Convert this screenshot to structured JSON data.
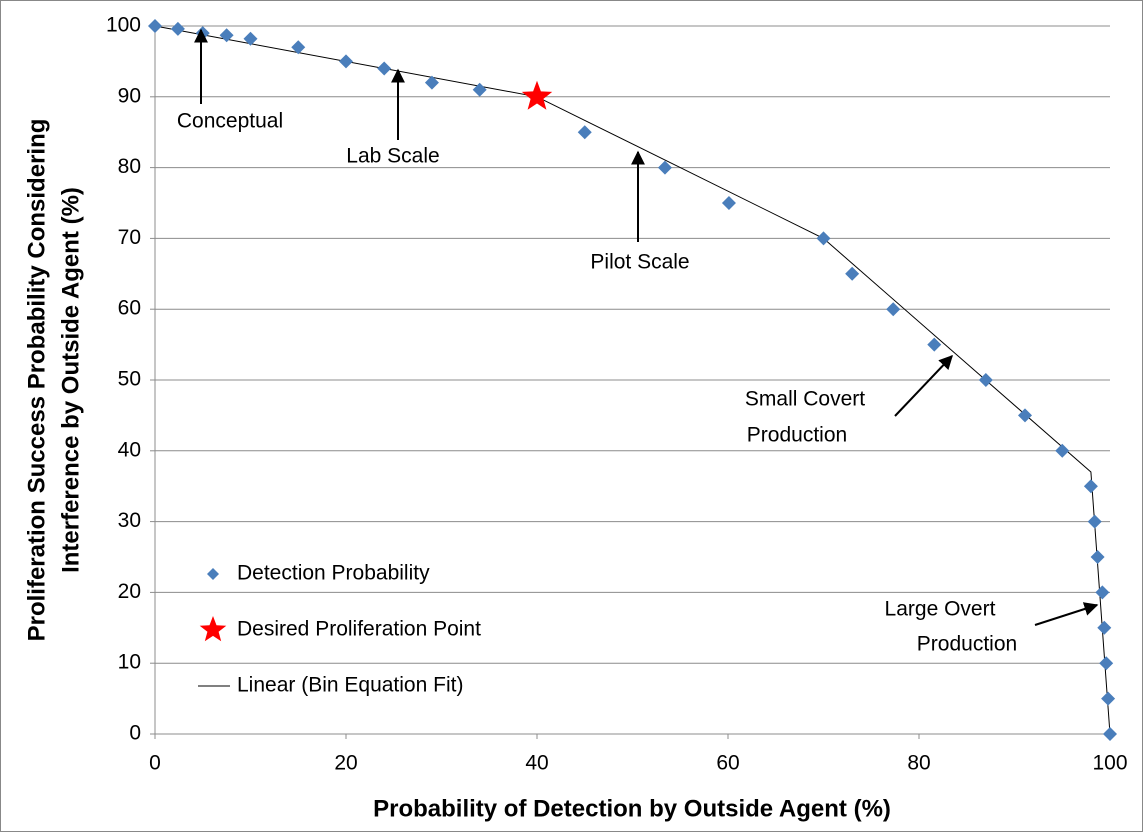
{
  "chart_data": {
    "type": "scatter",
    "xlabel": "Probability of Detection by Outside Agent (%)",
    "ylabel": [
      "Proliferation Success Probability Considering",
      "Interference by Outside Agent (%)"
    ],
    "xlim": [
      0,
      100
    ],
    "xticks": [
      0,
      20,
      40,
      60,
      80,
      100
    ],
    "ylim": [
      0,
      100
    ],
    "yticks": [
      0,
      10,
      20,
      30,
      40,
      50,
      60,
      70,
      80,
      90,
      100
    ],
    "grid": true,
    "legend": "lower left",
    "series": [
      {
        "name": "Detection Probability",
        "color": "#4a7ebb",
        "marker": "diamond",
        "x": [
          0,
          2.4,
          5,
          7.5,
          10,
          15,
          20,
          24,
          29,
          34,
          45,
          53.4,
          60.1,
          70,
          73,
          77.3,
          81.6,
          87,
          91.1,
          95,
          98,
          98.4,
          98.7,
          99.2,
          99.4,
          99.6,
          99.8,
          100
        ],
        "values": [
          100,
          99.6,
          99,
          98.7,
          98.2,
          97,
          95,
          94,
          92,
          91,
          85,
          80,
          75,
          70,
          65,
          60,
          55,
          50,
          45,
          40,
          35,
          30,
          25,
          20,
          15,
          10,
          5,
          0
        ]
      },
      {
        "name": "Desired Proliferation Point",
        "color": "#ff0000",
        "marker": "star",
        "x": [
          40
        ],
        "values": [
          90
        ]
      },
      {
        "name": "Linear (Bin Equation Fit)",
        "color": "#000000",
        "marker": "line",
        "x": [
          0,
          40,
          70,
          98,
          100
        ],
        "values": [
          100,
          90,
          70,
          37,
          0
        ]
      }
    ],
    "annotations": [
      {
        "lines": [
          "Conceptual"
        ]
      },
      {
        "lines": [
          "Lab Scale"
        ]
      },
      {
        "lines": [
          "Pilot  Scale"
        ]
      },
      {
        "lines": [
          "Small Covert",
          "Production"
        ]
      },
      {
        "lines": [
          "Large Overt",
          "Production"
        ]
      }
    ]
  }
}
